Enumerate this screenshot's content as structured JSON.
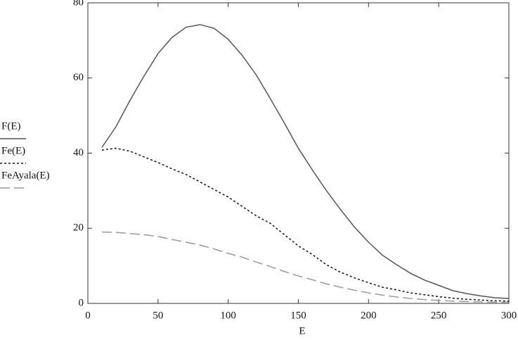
{
  "chart_data": {
    "type": "line",
    "x_label": "E",
    "x": [
      10,
      20,
      30,
      40,
      50,
      60,
      70,
      80,
      90,
      100,
      110,
      120,
      130,
      140,
      150,
      160,
      170,
      180,
      190,
      200,
      210,
      220,
      230,
      240,
      250,
      260,
      270,
      280,
      290,
      300
    ],
    "series": [
      {
        "name": "F(E)",
        "color": "#555555",
        "style": "solid",
        "values": [
          41.5,
          47,
          54,
          60.5,
          66.5,
          70.8,
          73.5,
          74.2,
          73.2,
          70.3,
          66,
          60.8,
          54.5,
          48,
          41.3,
          35.5,
          30,
          25,
          20.3,
          16.3,
          12.8,
          10.3,
          8,
          6.2,
          4.8,
          3.4,
          2.6,
          2,
          1.5,
          1.3
        ]
      },
      {
        "name": "Fe(E)",
        "color": "#111111",
        "style": "dotted",
        "values": [
          40.8,
          41.3,
          40.5,
          39,
          37.5,
          35.8,
          34.3,
          32.3,
          30.3,
          28.3,
          25.8,
          23.3,
          21.3,
          18.3,
          15.3,
          13,
          10.3,
          8.3,
          6.8,
          5.5,
          4.3,
          3.6,
          2.8,
          2.3,
          1.8,
          1.4,
          1.1,
          0.9,
          0.7,
          0.6
        ]
      },
      {
        "name": "FeAyala(E)",
        "color": "#999999",
        "style": "dashed",
        "values": [
          19,
          18.9,
          18.6,
          18.3,
          17.8,
          17,
          16.3,
          15.5,
          14.5,
          13.3,
          12.3,
          11,
          9.8,
          8.5,
          7.3,
          6.3,
          5.2,
          4.3,
          3.5,
          2.8,
          2.2,
          1.7,
          1.3,
          1,
          0.8,
          0.6,
          0.5,
          0.4,
          0.3,
          0.3
        ]
      }
    ],
    "xlim": [
      0,
      300
    ],
    "xticks": [
      0,
      50,
      100,
      150,
      200,
      250,
      300
    ],
    "ylim": [
      0,
      80
    ],
    "yticks": [
      0,
      20,
      40,
      60,
      80
    ],
    "grid": false,
    "legend": "left"
  }
}
